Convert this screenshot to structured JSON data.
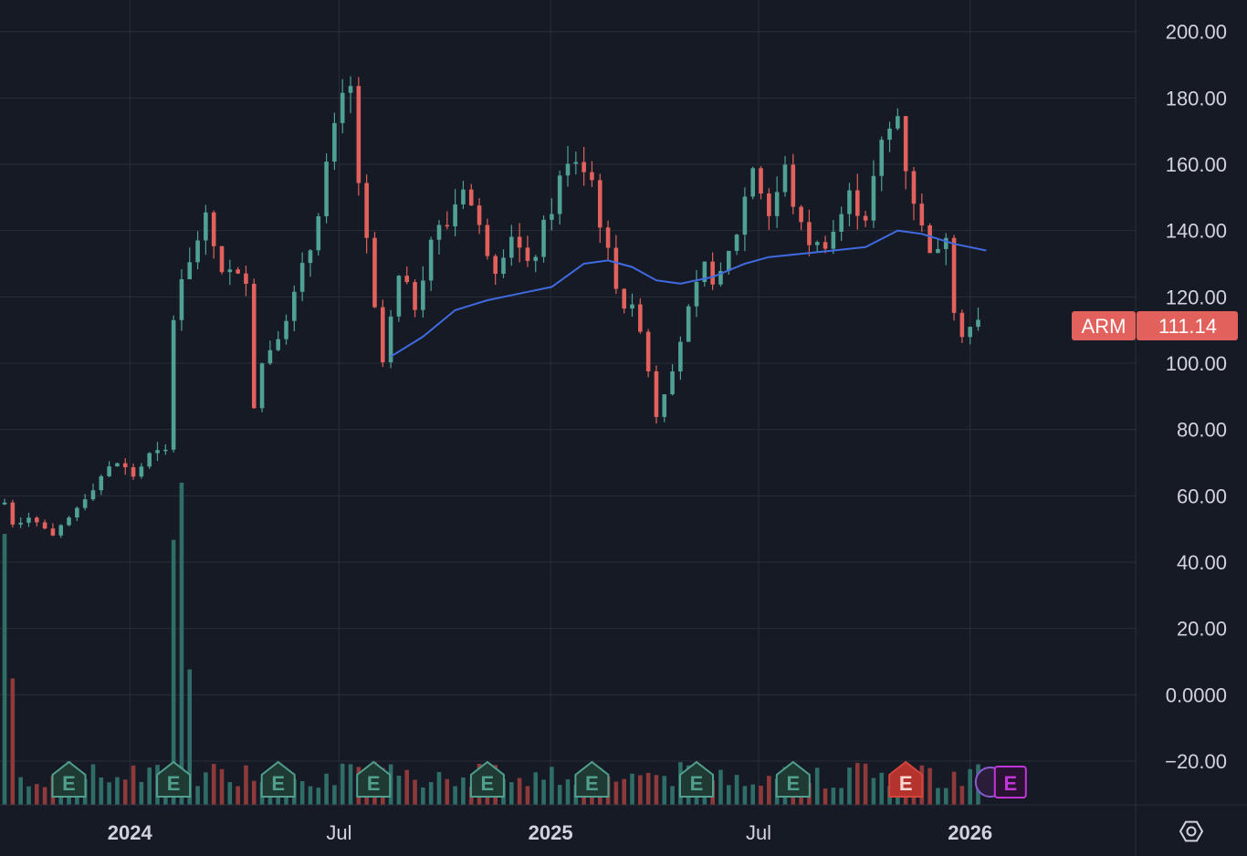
{
  "colors": {
    "background": "#161a25",
    "grid": "#2a2e39",
    "up": "#4fa095",
    "down": "#e2615c",
    "up_volume": "#2f6e68",
    "down_volume": "#8f3a3a",
    "ma_line": "#3f6ae0",
    "axis_text": "#d1d4dc",
    "price_tag": "#e2615c",
    "earnings_past": "#51a08f",
    "earnings_negative": "#d3453d",
    "earnings_future": "#c236d9"
  },
  "chart_data": {
    "type": "candlestick",
    "symbol": "ARM",
    "last_price": "111.14",
    "y_ticks": [
      "200.00",
      "180.00",
      "160.00",
      "140.00",
      "120.00",
      "100.00",
      "80.00",
      "60.00",
      "40.00",
      "20.00",
      "0.0000",
      "−20.00"
    ],
    "ylim": [
      -33,
      210
    ],
    "x_ticks": [
      {
        "label": "2024",
        "date": "2024-01-01",
        "bold": true
      },
      {
        "label": "Jul",
        "date": "2024-07-01",
        "bold": false
      },
      {
        "label": "2025",
        "date": "2025-01-01",
        "bold": true
      },
      {
        "label": "Jul",
        "date": "2025-07-01",
        "bold": false
      },
      {
        "label": "2026",
        "date": "2026-01-01",
        "bold": true
      }
    ],
    "x_range": [
      "2023-09-10",
      "2026-05-25"
    ],
    "weekly_close_anchors": [
      [
        "2023-09-14",
        58
      ],
      [
        "2023-09-21",
        52
      ],
      [
        "2023-10-05",
        54
      ],
      [
        "2023-10-19",
        50
      ],
      [
        "2023-10-26",
        47
      ],
      [
        "2023-11-09",
        53
      ],
      [
        "2023-11-23",
        60
      ],
      [
        "2023-12-07",
        66
      ],
      [
        "2023-12-21",
        70
      ],
      [
        "2024-01-04",
        66
      ],
      [
        "2024-01-18",
        72
      ],
      [
        "2024-02-01",
        73
      ],
      [
        "2024-02-08",
        114
      ],
      [
        "2024-02-15",
        126
      ],
      [
        "2024-02-29",
        138
      ],
      [
        "2024-03-07",
        142
      ],
      [
        "2024-03-21",
        129
      ],
      [
        "2024-04-04",
        125
      ],
      [
        "2024-04-11",
        127
      ],
      [
        "2024-04-18",
        88
      ],
      [
        "2024-04-25",
        100
      ],
      [
        "2024-05-09",
        110
      ],
      [
        "2024-05-23",
        120
      ],
      [
        "2024-06-06",
        135
      ],
      [
        "2024-06-20",
        160
      ],
      [
        "2024-07-04",
        178
      ],
      [
        "2024-07-11",
        182
      ],
      [
        "2024-07-18",
        155
      ],
      [
        "2024-07-25",
        135
      ],
      [
        "2024-08-01",
        115
      ],
      [
        "2024-08-08",
        100
      ],
      [
        "2024-08-22",
        125
      ],
      [
        "2024-09-05",
        118
      ],
      [
        "2024-09-19",
        138
      ],
      [
        "2024-10-03",
        142
      ],
      [
        "2024-10-17",
        155
      ],
      [
        "2024-10-31",
        140
      ],
      [
        "2024-11-14",
        130
      ],
      [
        "2024-11-28",
        140
      ],
      [
        "2024-12-12",
        128
      ],
      [
        "2024-12-26",
        140
      ],
      [
        "2025-01-09",
        155
      ],
      [
        "2025-01-23",
        162
      ],
      [
        "2025-02-06",
        155
      ],
      [
        "2025-02-20",
        132
      ],
      [
        "2025-03-06",
        118
      ],
      [
        "2025-03-20",
        112
      ],
      [
        "2025-04-03",
        85
      ],
      [
        "2025-04-17",
        100
      ],
      [
        "2025-05-01",
        115
      ],
      [
        "2025-05-15",
        128
      ],
      [
        "2025-05-29",
        125
      ],
      [
        "2025-06-12",
        140
      ],
      [
        "2025-06-26",
        160
      ],
      [
        "2025-07-10",
        145
      ],
      [
        "2025-07-24",
        158
      ],
      [
        "2025-08-07",
        140
      ],
      [
        "2025-08-21",
        135
      ],
      [
        "2025-09-04",
        140
      ],
      [
        "2025-09-18",
        150
      ],
      [
        "2025-10-02",
        145
      ],
      [
        "2025-10-16",
        165
      ],
      [
        "2025-10-30",
        175
      ],
      [
        "2025-11-06",
        160
      ],
      [
        "2025-11-20",
        140
      ],
      [
        "2025-12-04",
        132
      ],
      [
        "2025-12-11",
        140
      ],
      [
        "2025-12-18",
        118
      ],
      [
        "2025-12-25",
        110
      ],
      [
        "2026-01-08",
        112
      ]
    ],
    "moving_average_anchors": [
      [
        "2024-08-15",
        102
      ],
      [
        "2024-09-12",
        108
      ],
      [
        "2024-10-10",
        116
      ],
      [
        "2024-11-07",
        119
      ],
      [
        "2024-12-05",
        121
      ],
      [
        "2025-01-02",
        123
      ],
      [
        "2025-01-30",
        130
      ],
      [
        "2025-02-20",
        131
      ],
      [
        "2025-03-13",
        129
      ],
      [
        "2025-04-03",
        125
      ],
      [
        "2025-04-24",
        124
      ],
      [
        "2025-05-22",
        126
      ],
      [
        "2025-06-19",
        130
      ],
      [
        "2025-07-10",
        132
      ],
      [
        "2025-08-07",
        133
      ],
      [
        "2025-09-04",
        134
      ],
      [
        "2025-10-02",
        135
      ],
      [
        "2025-10-30",
        140
      ],
      [
        "2025-11-20",
        139
      ],
      [
        "2025-12-18",
        136
      ],
      [
        "2026-01-15",
        134
      ]
    ],
    "volume_spikes": [
      {
        "date": "2023-09-14",
        "value": 90,
        "up": true
      },
      {
        "date": "2023-09-21",
        "value": 42,
        "up": false
      },
      {
        "date": "2024-02-08",
        "value": 88,
        "up": true
      },
      {
        "date": "2024-02-15",
        "value": 107,
        "up": true
      },
      {
        "date": "2024-02-22",
        "value": 45,
        "up": true
      }
    ],
    "earnings_events": [
      {
        "date": "2023-11-09",
        "label": "E",
        "kind": "past"
      },
      {
        "date": "2024-02-08",
        "label": "E",
        "kind": "past"
      },
      {
        "date": "2024-05-09",
        "label": "E",
        "kind": "past"
      },
      {
        "date": "2024-07-31",
        "label": "E",
        "kind": "past"
      },
      {
        "date": "2024-11-07",
        "label": "E",
        "kind": "past"
      },
      {
        "date": "2025-02-06",
        "label": "E",
        "kind": "past"
      },
      {
        "date": "2025-05-08",
        "label": "E",
        "kind": "past"
      },
      {
        "date": "2025-07-31",
        "label": "E",
        "kind": "past"
      },
      {
        "date": "2025-11-06",
        "label": "E",
        "kind": "negative"
      },
      {
        "date": "2026-02-05",
        "label": "E",
        "kind": "future"
      }
    ]
  }
}
